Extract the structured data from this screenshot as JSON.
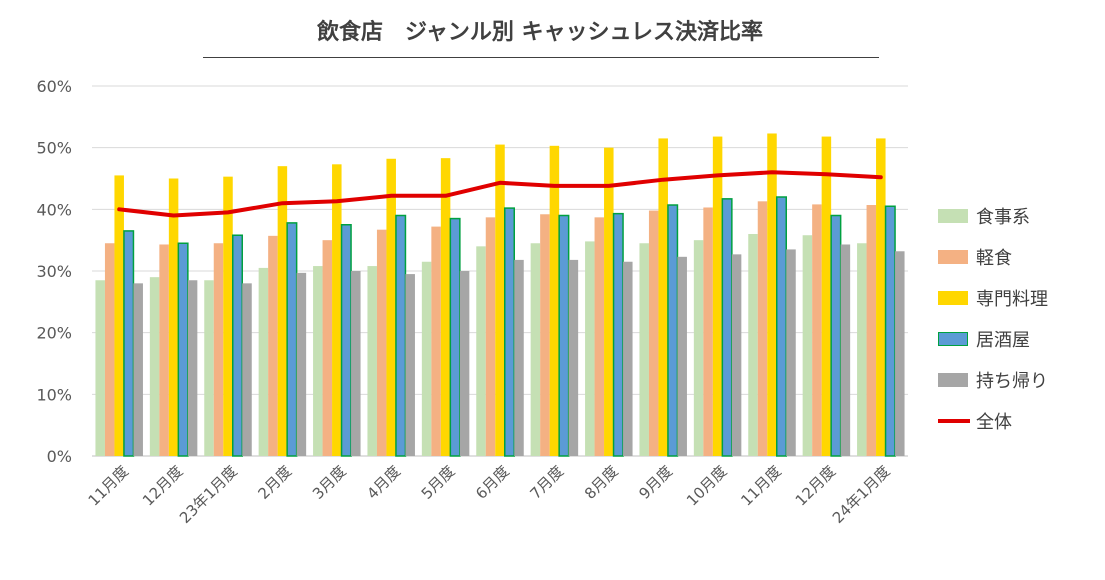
{
  "chart_data": {
    "type": "bar",
    "title": "飲食店　ジャンル別 キャッシュレス決済比率",
    "categories": [
      "11月度",
      "12月度",
      "23年1月度",
      "2月度",
      "3月度",
      "4月度",
      "5月度",
      "6月度",
      "7月度",
      "8月度",
      "9月度",
      "10月度",
      "11月度",
      "12月度",
      "24年1月度"
    ],
    "yticks": [
      "0%",
      "10%",
      "20%",
      "30%",
      "40%",
      "50%",
      "60%"
    ],
    "ylim": [
      0,
      60
    ],
    "grid": true,
    "legend_position": "right",
    "series": [
      {
        "name": "食事系",
        "type": "bar",
        "color": "#c5e0b4",
        "values": [
          28.5,
          29.0,
          28.5,
          30.5,
          30.8,
          30.8,
          31.5,
          34.0,
          34.5,
          34.8,
          34.5,
          35.0,
          36.0,
          35.8,
          34.5
        ]
      },
      {
        "name": "軽食",
        "type": "bar",
        "color": "#f4b183",
        "values": [
          34.5,
          34.3,
          34.5,
          35.7,
          35.0,
          36.7,
          37.2,
          38.7,
          39.2,
          38.7,
          39.8,
          40.3,
          41.3,
          40.8,
          40.7
        ]
      },
      {
        "name": "専門料理",
        "type": "bar",
        "color": "#ffd700",
        "values": [
          45.5,
          45.0,
          45.3,
          47.0,
          47.3,
          48.2,
          48.3,
          50.5,
          50.3,
          50.0,
          51.5,
          51.8,
          52.3,
          51.8,
          51.5
        ]
      },
      {
        "name": "居酒屋",
        "type": "bar",
        "color": "#5b9bd5",
        "stroke": "#00a040",
        "values": [
          36.5,
          34.5,
          35.8,
          37.8,
          37.5,
          39.0,
          38.5,
          40.2,
          39.0,
          39.3,
          40.7,
          41.7,
          42.0,
          39.0,
          40.5
        ]
      },
      {
        "name": "持ち帰り",
        "type": "bar",
        "color": "#a6a6a6",
        "values": [
          28.0,
          28.5,
          28.0,
          29.7,
          30.0,
          29.5,
          30.0,
          31.8,
          31.8,
          31.5,
          32.3,
          32.7,
          33.5,
          34.3,
          33.2
        ]
      },
      {
        "name": "全体",
        "type": "line",
        "color": "#e00000",
        "values": [
          40.0,
          39.0,
          39.5,
          41.0,
          41.3,
          42.2,
          42.2,
          44.3,
          43.8,
          43.8,
          44.8,
          45.5,
          46.0,
          45.7,
          45.2
        ]
      }
    ]
  }
}
